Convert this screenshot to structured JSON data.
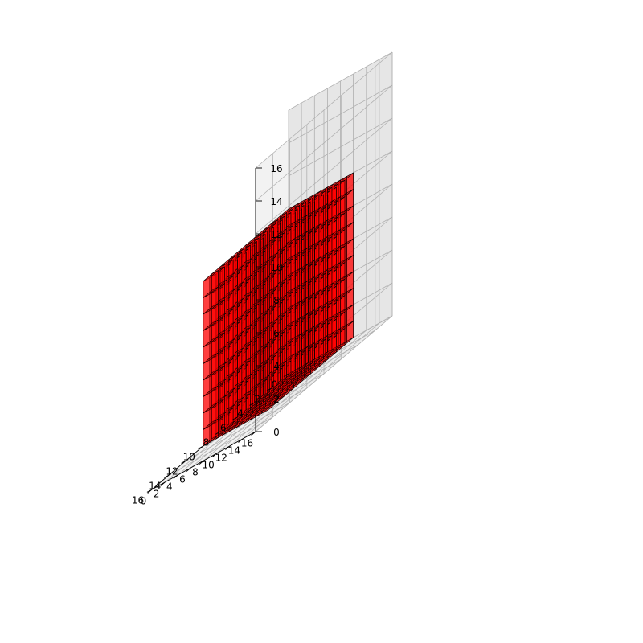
{
  "chart_data": {
    "type": "voxels",
    "title": "",
    "xlabel": "",
    "ylabel": "",
    "zlabel": "",
    "xlim": [
      0,
      16
    ],
    "ylim": [
      0,
      16
    ],
    "zlim": [
      0,
      16
    ],
    "grid": true,
    "ticks": {
      "x": [
        "0",
        "2",
        "4",
        "6",
        "8",
        "10",
        "12",
        "14",
        "16"
      ],
      "y": [
        "0",
        "2",
        "4",
        "6",
        "8",
        "10",
        "12",
        "14",
        "16"
      ],
      "z": [
        "0",
        "2",
        "4",
        "6",
        "8",
        "10",
        "12",
        "14",
        "16"
      ]
    },
    "voxels": {
      "filled_x": [
        0,
        10
      ],
      "filled_y": [
        0,
        10
      ],
      "filled_z": [
        0,
        10
      ],
      "count": 1000,
      "face_color": "#ff0000",
      "face_alpha": 0.5,
      "edge_color": "#000000"
    },
    "pane_color": "#e6e6e6",
    "grid_color": "#b0b0b0"
  }
}
